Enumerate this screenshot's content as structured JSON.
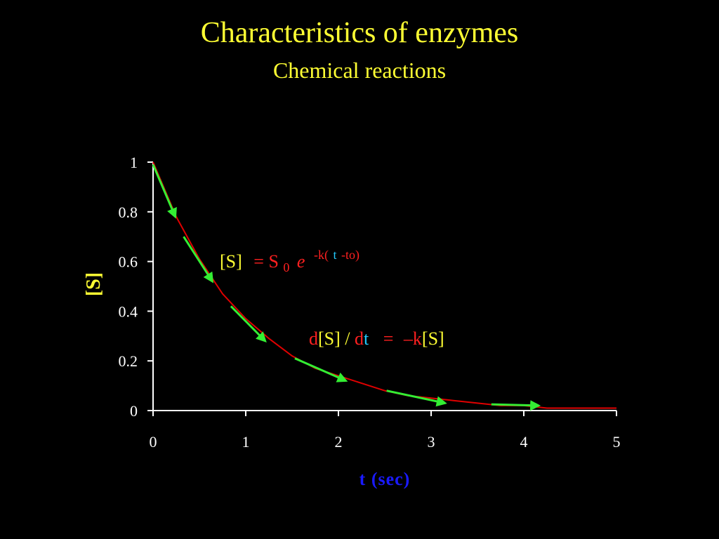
{
  "chart_data": {
    "type": "line",
    "title": "Characteristics of enzymes",
    "subtitle": "Chemical reactions",
    "x_label": "t (sec)",
    "y_label": "[S]",
    "x": [
      0,
      0.25,
      0.5,
      0.75,
      1,
      1.25,
      1.5,
      1.75,
      2,
      2.25,
      2.5,
      2.75,
      3,
      3.25,
      3.5,
      3.75,
      4,
      4.25,
      4.5,
      4.75,
      5
    ],
    "series": [
      {
        "color": "#e00000",
        "values": [
          1,
          0.78,
          0.61,
          0.47,
          0.37,
          0.29,
          0.22,
          0.17,
          0.14,
          0.11,
          0.08,
          0.06,
          0.05,
          0.04,
          0.03,
          0.02,
          0.02,
          0.01,
          0.01,
          0.01,
          0.01
        ]
      }
    ],
    "tangent_color": "#33ee33",
    "tangents": [
      {
        "x": [
          0,
          0.24
        ],
        "y": [
          0.99,
          0.78
        ]
      },
      {
        "x": [
          0.33,
          0.64
        ],
        "y": [
          0.7,
          0.52
        ]
      },
      {
        "x": [
          0.84,
          1.21
        ],
        "y": [
          0.42,
          0.28
        ]
      },
      {
        "x": [
          1.53,
          2.08
        ],
        "y": [
          0.21,
          0.12
        ]
      },
      {
        "x": [
          2.52,
          3.15
        ],
        "y": [
          0.08,
          0.03
        ]
      },
      {
        "x": [
          3.65,
          4.16
        ],
        "y": [
          0.025,
          0.02
        ]
      }
    ],
    "xlim": [
      0,
      5
    ],
    "xticks": [
      0,
      1,
      2,
      3,
      4,
      5
    ],
    "ylim": [
      0,
      1
    ],
    "yticks": [
      0,
      0.2,
      0.4,
      0.6,
      0.8,
      1
    ],
    "equations": [
      [
        "[S]",
        "= S",
        "0",
        "e",
        "-k(",
        "t",
        "-to)"
      ],
      [
        "d",
        "[S] / ",
        "d",
        "t",
        "=",
        "–k",
        "[S]"
      ]
    ]
  }
}
